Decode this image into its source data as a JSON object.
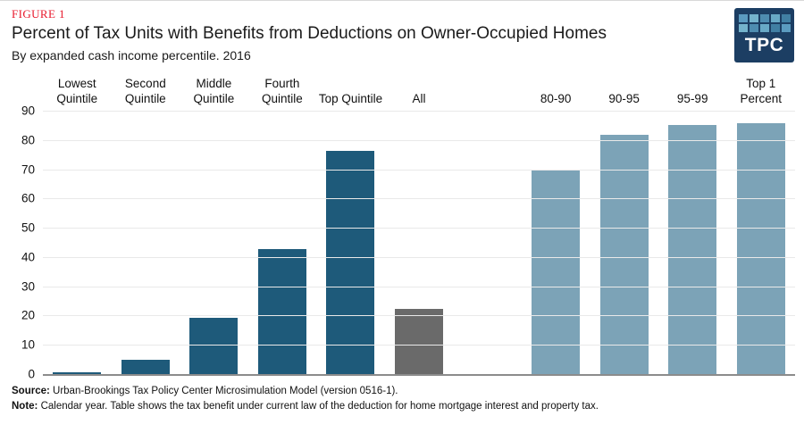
{
  "figure_label": "FIGURE 1",
  "title": "Percent of Tax Units with Benefits from Deductions on Owner-Occupied Homes",
  "subtitle": "By expanded cash income percentile. 2016",
  "logo": {
    "text": "TPC",
    "bg_color": "#1c3e63",
    "cell_colors": [
      "#5b9bc0",
      "#74b3cc",
      "#4e8cb0",
      "#68a9c6",
      "#417fa3",
      "#74b3cc",
      "#4e8cb0",
      "#68a9c6",
      "#417fa3",
      "#5b9bc0"
    ]
  },
  "footer": {
    "source_label": "Source:",
    "source_text": " Urban-Brookings Tax Policy Center Microsimulation Model (version 0516-1).",
    "note_label": "Note:",
    "note_text": "  Calendar year. Table shows the tax benefit under current law of the deduction for home mortgage interest and property tax."
  },
  "chart_data": {
    "type": "bar",
    "title": "Percent of Tax Units with Benefits from Deductions on Owner-Occupied Homes",
    "subtitle": "By expanded cash income percentile. 2016",
    "xlabel": "",
    "ylabel": "",
    "ylim": [
      0,
      90
    ],
    "ytick_interval": 10,
    "grid": "horizontal",
    "legend": "none",
    "axis_color": "#8c8c8c",
    "gridline_color": "#e9e9e9",
    "bar_colors": {
      "dark": "#1e5a7a",
      "gray": "#6a6a6a",
      "light": "#7ca3b7"
    },
    "categories": [
      "Lowest Quintile",
      "Second Quintile",
      "Middle Quintile",
      "Fourth Quintile",
      "Top Quintile",
      "All",
      "80-90",
      "90-95",
      "95-99",
      "Top 1 Percent"
    ],
    "values": [
      0.7,
      5.0,
      19.3,
      42.8,
      76.4,
      22.4,
      69.8,
      81.9,
      85.1,
      85.8
    ],
    "points": [
      {
        "label_lines": [
          "Lowest",
          "Quintile"
        ],
        "value": 0.7,
        "color": "dark"
      },
      {
        "label_lines": [
          "Second",
          "Quintile"
        ],
        "value": 5.0,
        "color": "dark"
      },
      {
        "label_lines": [
          "Middle",
          "Quintile"
        ],
        "value": 19.3,
        "color": "dark"
      },
      {
        "label_lines": [
          "Fourth",
          "Quintile"
        ],
        "value": 42.8,
        "color": "dark"
      },
      {
        "label_lines": [
          "Top Quintile"
        ],
        "value": 76.4,
        "color": "dark"
      },
      {
        "label_lines": [
          "All"
        ],
        "value": 22.4,
        "color": "gray"
      },
      {
        "spacer": true
      },
      {
        "label_lines": [
          "80-90"
        ],
        "value": 69.8,
        "color": "light"
      },
      {
        "label_lines": [
          "90-95"
        ],
        "value": 81.9,
        "color": "light"
      },
      {
        "label_lines": [
          "95-99"
        ],
        "value": 85.1,
        "color": "light"
      },
      {
        "label_lines": [
          "Top 1",
          "Percent"
        ],
        "value": 85.8,
        "color": "light"
      }
    ]
  }
}
